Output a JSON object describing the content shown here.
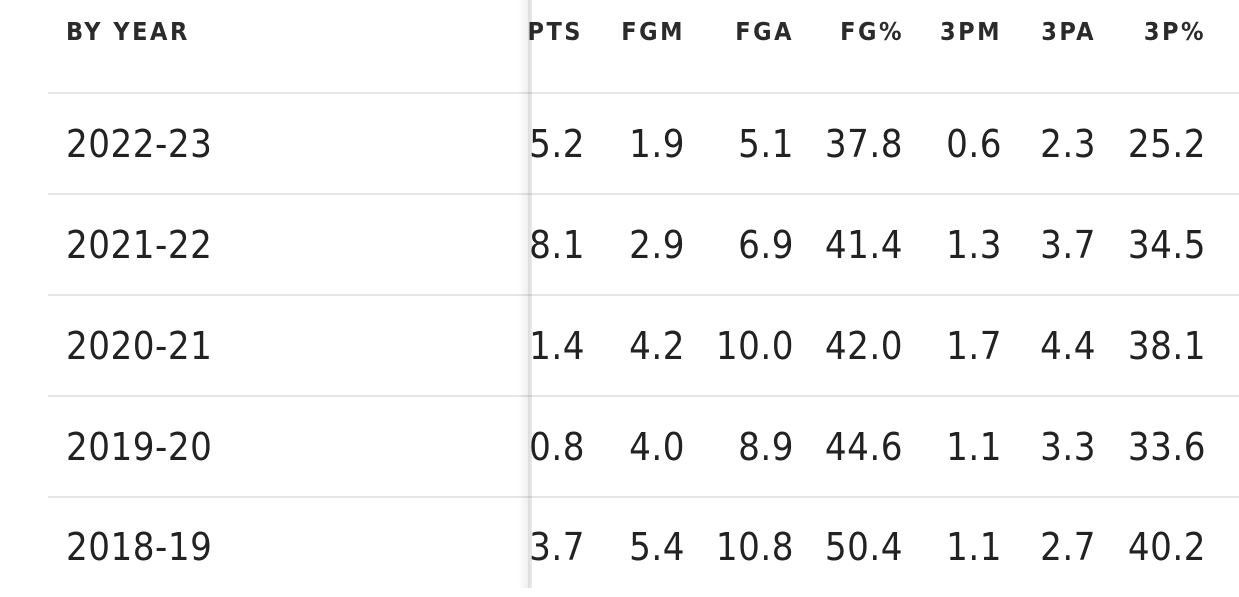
{
  "table": {
    "header": {
      "year_label": "BY YEAR",
      "columns": [
        "PTS",
        "FGM",
        "FGA",
        "FG%",
        "3PM",
        "3PA",
        "3P%"
      ]
    },
    "rows": [
      {
        "year": "2022-23",
        "values": [
          "5.2",
          "1.9",
          "5.1",
          "37.8",
          "0.6",
          "2.3",
          "25.2"
        ]
      },
      {
        "year": "2021-22",
        "values": [
          "8.1",
          "2.9",
          "6.9",
          "41.4",
          "1.3",
          "3.7",
          "34.5"
        ]
      },
      {
        "year": "2020-21",
        "values": [
          "1.4",
          "4.2",
          "10.0",
          "42.0",
          "1.7",
          "4.4",
          "38.1"
        ]
      },
      {
        "year": "2019-20",
        "values": [
          "0.8",
          "4.0",
          "8.9",
          "44.6",
          "1.1",
          "3.3",
          "33.6"
        ]
      },
      {
        "year": "2018-19",
        "values": [
          "3.7",
          "5.4",
          "10.8",
          "50.4",
          "1.1",
          "2.7",
          "40.2"
        ]
      }
    ]
  }
}
